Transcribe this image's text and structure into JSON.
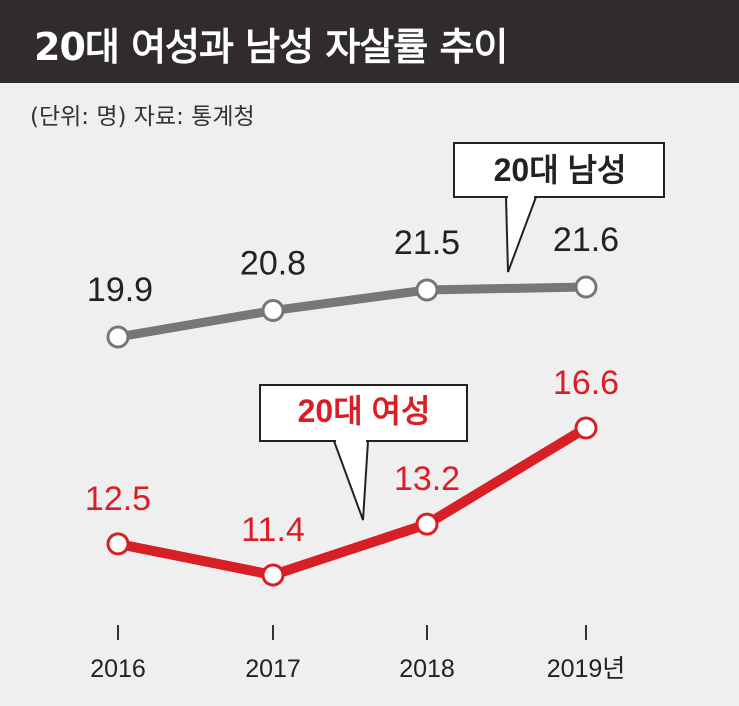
{
  "header": {
    "title": "20대 여성과 남성 자살률 추이",
    "source_note": "(단위: 명) 자료: 통계청"
  },
  "colors": {
    "header_bg": "#302c2b",
    "background": "#efefef",
    "male": "#777777",
    "female": "#d81f26",
    "axis": "#333333"
  },
  "chart_data": {
    "type": "line",
    "title": "20대 여성과 남성 자살률 추이",
    "unit": "(단위: 명)",
    "source": "자료: 통계청",
    "categories": [
      "2016",
      "2017",
      "2018",
      "2019년"
    ],
    "series": [
      {
        "name": "20대 남성",
        "values": [
          19.9,
          20.8,
          21.5,
          21.6
        ],
        "labels": [
          "19.9",
          "20.8",
          "21.5",
          "21.6"
        ]
      },
      {
        "name": "20대 여성",
        "values": [
          12.5,
          11.4,
          13.2,
          16.6
        ],
        "labels": [
          "12.5",
          "11.4",
          "13.2",
          "16.6"
        ]
      }
    ],
    "xlabel": "",
    "ylabel": "",
    "grid": false
  }
}
